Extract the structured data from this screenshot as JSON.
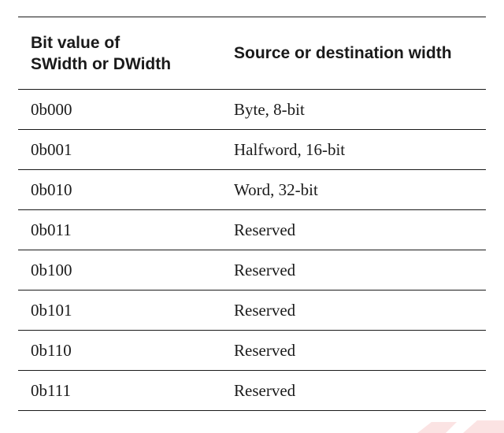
{
  "table": {
    "headers": {
      "col1_line1": "Bit value of",
      "col1_line2": "SWidth or DWidth",
      "col2": "Source or destination width"
    },
    "rows": [
      {
        "bits": "0b000",
        "width": "Byte, 8-bit"
      },
      {
        "bits": "0b001",
        "width": "Halfword, 16-bit"
      },
      {
        "bits": "0b010",
        "width": "Word, 32-bit"
      },
      {
        "bits": "0b011",
        "width": "Reserved"
      },
      {
        "bits": "0b100",
        "width": "Reserved"
      },
      {
        "bits": "0b101",
        "width": "Reserved"
      },
      {
        "bits": "0b110",
        "width": "Reserved"
      },
      {
        "bits": "0b111",
        "width": "Reserved"
      }
    ]
  },
  "colors": {
    "text": "#1a1a1a",
    "rule": "#1a1a1a",
    "background": "#ffffff"
  }
}
